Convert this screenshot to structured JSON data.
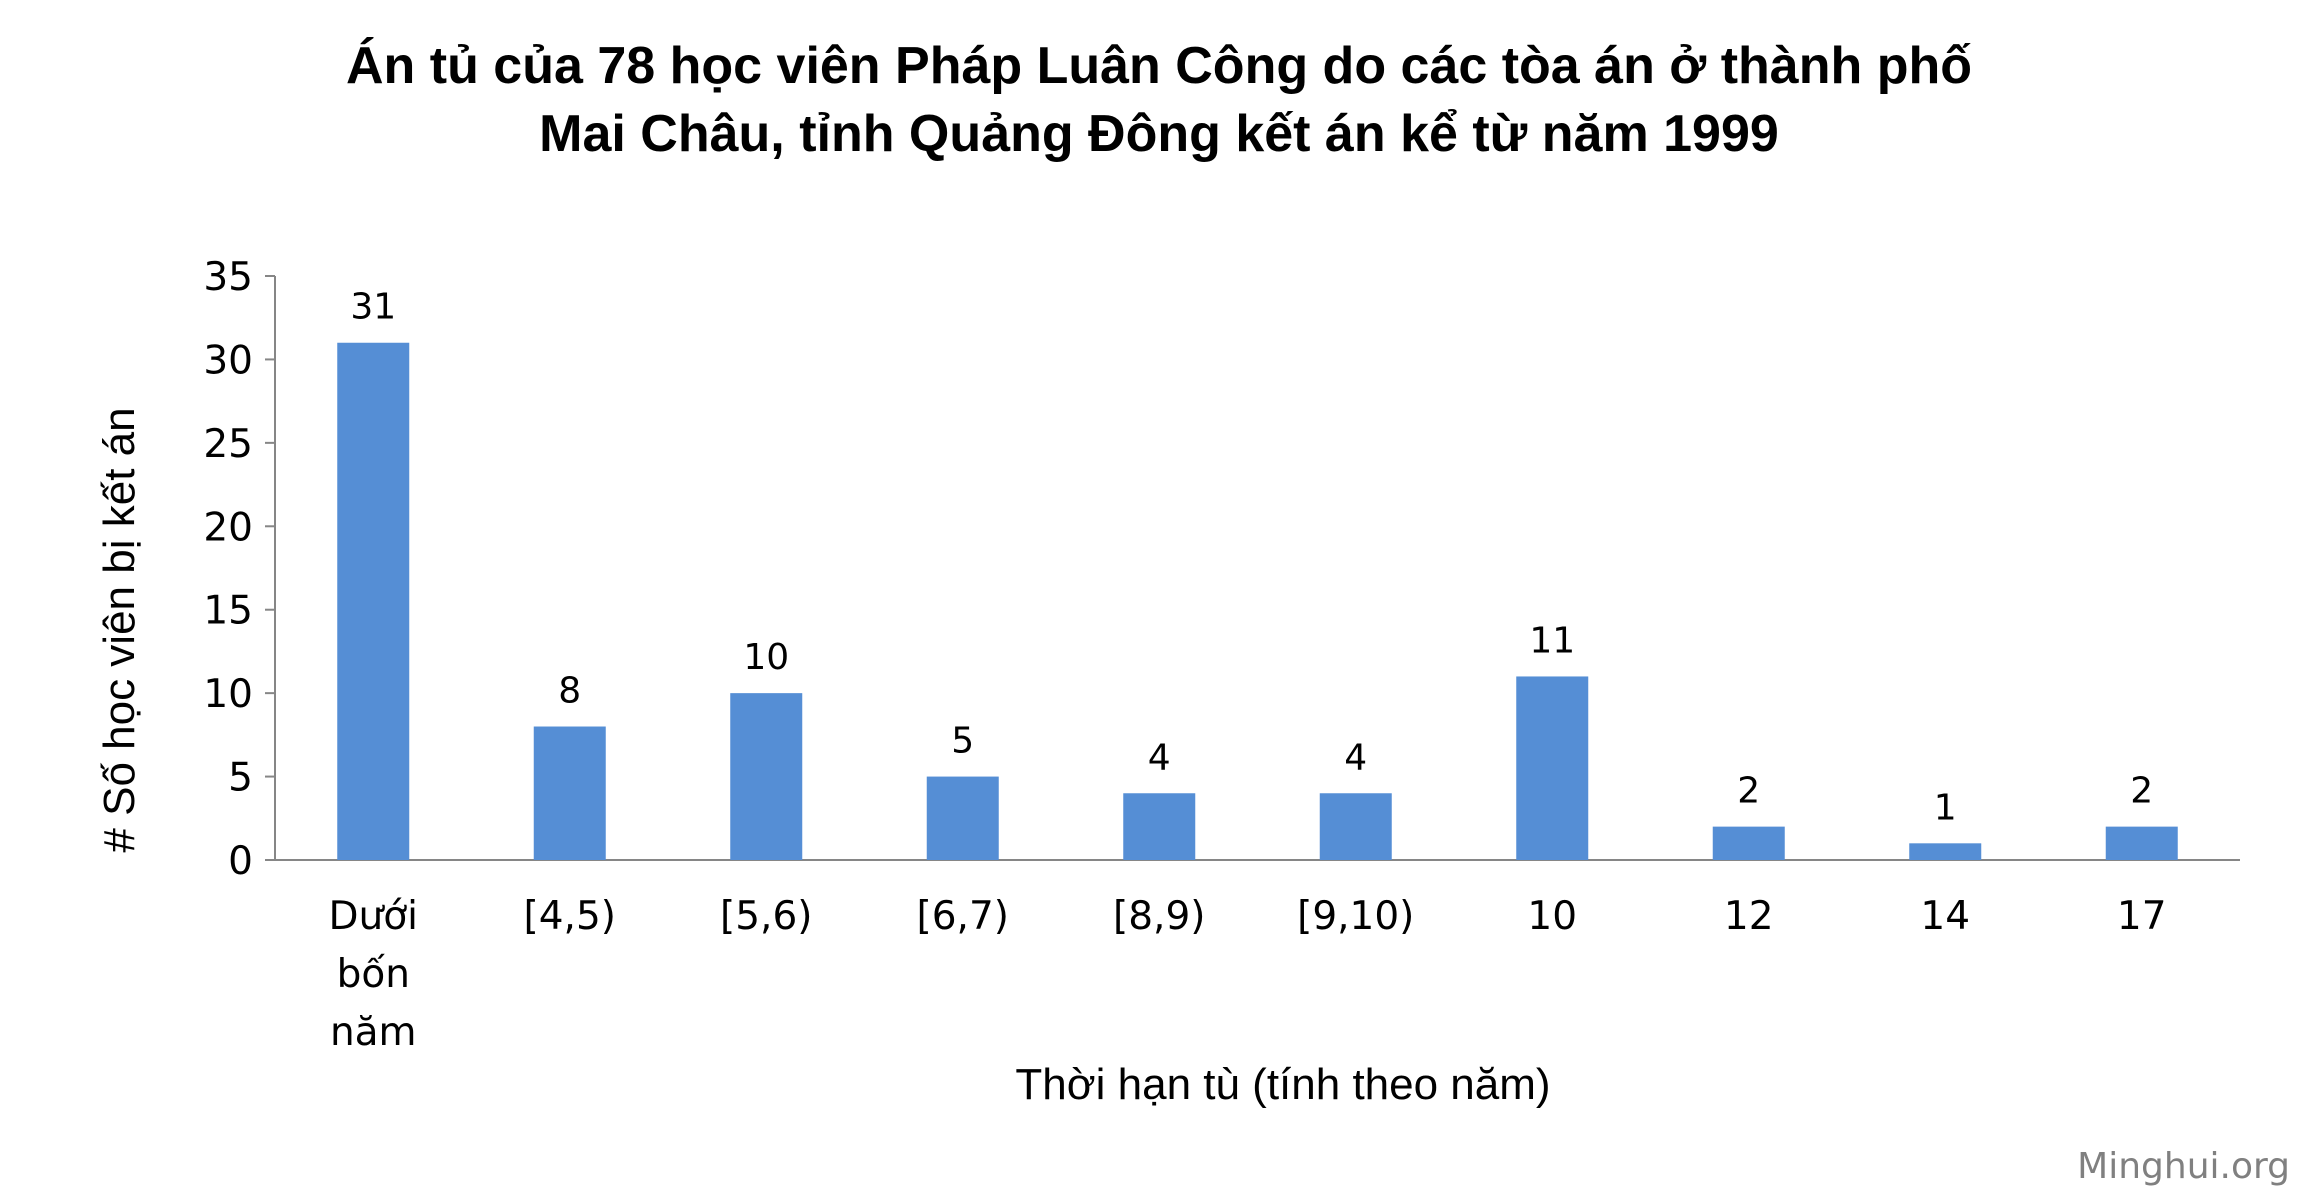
{
  "chart_data": {
    "type": "bar",
    "title_lines": [
      "Án tủ của 78 học viên Pháp Luân Công do các tòa án ở thành phố",
      "Mai Châu, tỉnh Quảng Đông kết án kể từ năm 1999"
    ],
    "categories": [
      "Dưới bốn năm",
      "[4,5)",
      "[5,6)",
      "[6,7)",
      "[8,9)",
      "[9,10)",
      "10",
      "12",
      "14",
      "17"
    ],
    "values": [
      31,
      8,
      10,
      5,
      4,
      4,
      11,
      2,
      1,
      2
    ],
    "xlabel": "Thời hạn tù (tính theo năm)",
    "ylabel": "# Số học viên bị kết án",
    "ylim": [
      0,
      35
    ],
    "yticks": [
      0,
      5,
      10,
      15,
      20,
      25,
      30,
      35
    ],
    "grid": false,
    "legend": "none",
    "bar_color": "#558ED5"
  },
  "watermark": "Minghui.org"
}
